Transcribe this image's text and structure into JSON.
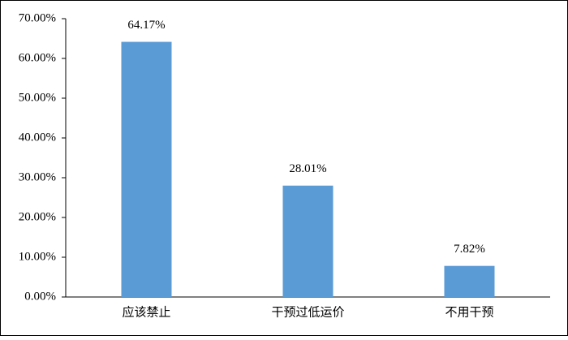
{
  "chart_data": {
    "type": "bar",
    "categories": [
      "应该禁止",
      "干预过低运价",
      "不用干预"
    ],
    "values": [
      64.17,
      28.01,
      7.82
    ],
    "value_labels": [
      "64.17%",
      "28.01%",
      "7.82%"
    ],
    "color": "#5b9bd5",
    "ylim": [
      0,
      70
    ],
    "yticks": [
      {
        "value": 0,
        "label": "0.00%"
      },
      {
        "value": 10,
        "label": "10.00%"
      },
      {
        "value": 20,
        "label": "20.00%"
      },
      {
        "value": 30,
        "label": "30.00%"
      },
      {
        "value": 40,
        "label": "40.00%"
      },
      {
        "value": 50,
        "label": "50.00%"
      },
      {
        "value": 60,
        "label": "60.00%"
      },
      {
        "value": 70,
        "label": "70.00%"
      }
    ],
    "grid": false
  }
}
